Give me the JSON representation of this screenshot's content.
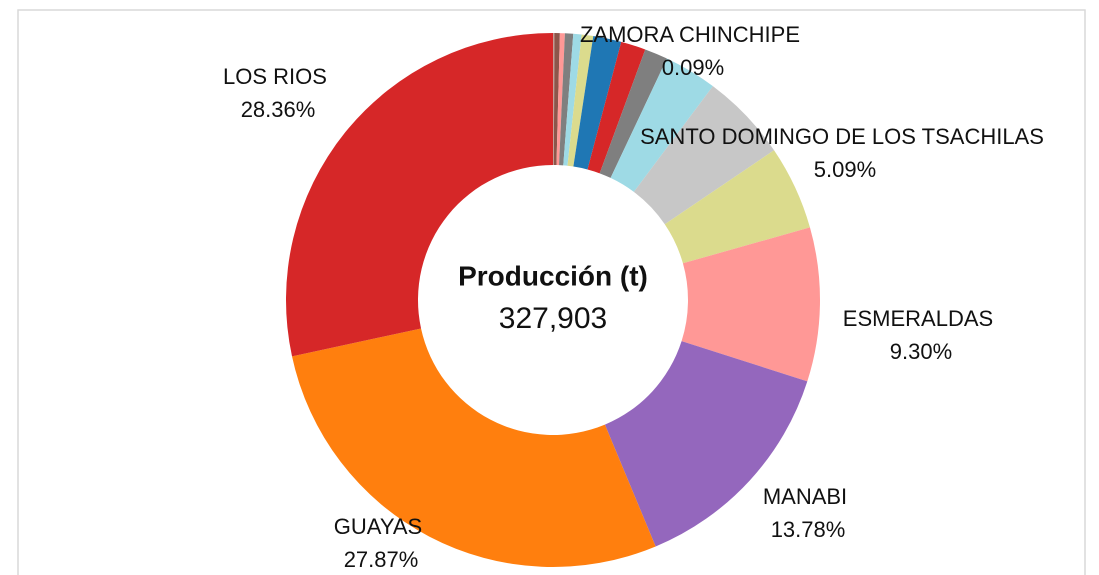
{
  "chart_data": {
    "type": "donut",
    "center_title": "Producción (t)",
    "center_text": "327,903",
    "categories": [
      "ZAMORA CHINCHIPE",
      null,
      null,
      null,
      null,
      null,
      null,
      null,
      null,
      null,
      null,
      "SANTO DOMINGO DE LOS TSACHILAS",
      "ESMERALDAS",
      "MANABI",
      "GUAYAS",
      "LOS RIOS"
    ],
    "values": [
      0.09,
      0.32,
      0.3,
      0.5,
      0.5,
      0.7,
      1.7,
      1.5,
      1.4,
      3.2,
      5.3,
      5.09,
      9.3,
      13.78,
      27.87,
      28.36
    ],
    "value_labels": [
      "0.09%",
      null,
      null,
      null,
      null,
      null,
      null,
      null,
      null,
      null,
      null,
      "5.09%",
      "9.30%",
      "13.78%",
      "27.87%",
      "28.36%"
    ],
    "colors": [
      "#c49c94",
      "#8c564b",
      "#ff9896",
      "#7f7f7f",
      "#9edae5",
      "#dbdb8d",
      "#1f77b4",
      "#d62728",
      "#7f7f7f",
      "#9edae5",
      "#c7c7c7",
      "#dbdb8d",
      "#ff9896",
      "#9467bd",
      "#ff7f0e",
      "#d62728"
    ]
  }
}
